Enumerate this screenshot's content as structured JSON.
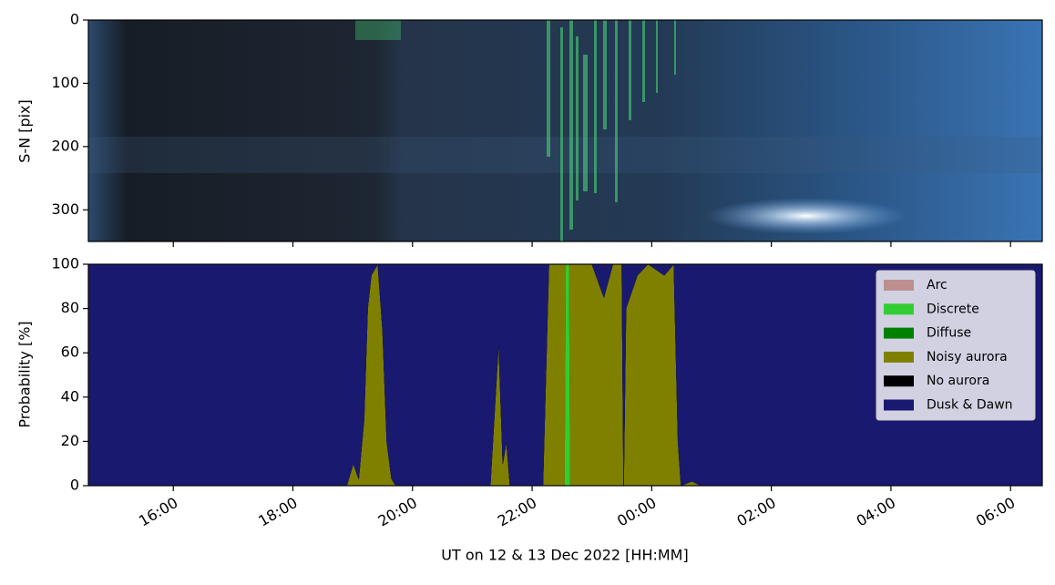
{
  "chart_data": [
    {
      "type": "image",
      "ylabel": "S-N [pix]",
      "ylim": [
        350,
        0
      ],
      "yticks": [
        0,
        100,
        200,
        300
      ]
    },
    {
      "type": "stackarea",
      "ylabel": "Probability [%]",
      "xlabel": "UT on 12 & 13 Dec 2022 [HH:MM]",
      "xlim": [
        14.58,
        30.53
      ],
      "xticks": [
        {
          "value": 16,
          "label": "16:00"
        },
        {
          "value": 18,
          "label": "18:00"
        },
        {
          "value": 20,
          "label": "20:00"
        },
        {
          "value": 22,
          "label": "22:00"
        },
        {
          "value": 24,
          "label": "00:00"
        },
        {
          "value": 26,
          "label": "02:00"
        },
        {
          "value": 28,
          "label": "04:00"
        },
        {
          "value": 30,
          "label": "06:00"
        }
      ],
      "ylim": [
        0,
        100
      ],
      "yticks": [
        0,
        20,
        40,
        60,
        80,
        100
      ],
      "legend": "upper right",
      "x": [
        14.58,
        18.9,
        19.01,
        19.1,
        19.19,
        19.25,
        19.31,
        19.42,
        19.5,
        19.57,
        19.65,
        19.72,
        21.3,
        21.44,
        21.51,
        21.57,
        21.63,
        22.18,
        22.24,
        22.28,
        22.54,
        22.56,
        22.62,
        22.64,
        23.0,
        23.2,
        23.35,
        23.5,
        23.53,
        23.57,
        23.76,
        23.94,
        24.21,
        24.37,
        24.44,
        24.49,
        24.67,
        24.82,
        30.53
      ],
      "series": [
        {
          "name": "Arc",
          "color": "#bc8f8f",
          "values": [
            0,
            0,
            0,
            0,
            0,
            0,
            0,
            0,
            0,
            0,
            0,
            0,
            0,
            0,
            0,
            0,
            0,
            0,
            0,
            0,
            0,
            0,
            0,
            0,
            0,
            0,
            0,
            0,
            0,
            0,
            0,
            0,
            0,
            0,
            0,
            0,
            0,
            0,
            0
          ]
        },
        {
          "name": "Discrete",
          "color": "#32cd32",
          "values": [
            0,
            0,
            0,
            0,
            0,
            0,
            0,
            0,
            0,
            0,
            0,
            0,
            0,
            0,
            0,
            0,
            0,
            0,
            0,
            0,
            0,
            100,
            100,
            0,
            0,
            0,
            0,
            0,
            0,
            0,
            0,
            0,
            0,
            0,
            0,
            0,
            0,
            0,
            0
          ]
        },
        {
          "name": "Diffuse",
          "color": "#008000",
          "values": [
            0,
            0,
            0,
            0,
            0,
            0,
            0,
            0,
            0,
            0,
            0,
            0,
            0,
            0,
            0,
            0,
            0,
            0,
            0,
            0,
            0,
            0,
            0,
            0,
            0,
            0,
            0,
            0,
            0,
            0,
            0,
            0,
            0,
            0,
            0,
            0,
            0,
            0,
            0
          ]
        },
        {
          "name": "Noisy aurora",
          "color": "#808000",
          "values": [
            0,
            0,
            10,
            3,
            30,
            80,
            95,
            100,
            70,
            20,
            3,
            0,
            0,
            65,
            10,
            20,
            0,
            0,
            60,
            100,
            100,
            0,
            0,
            100,
            100,
            85,
            100,
            100,
            0,
            80,
            95,
            100,
            95,
            100,
            20,
            0,
            2,
            0,
            0
          ]
        },
        {
          "name": "No aurora",
          "color": "#000000",
          "values": [
            0,
            0,
            0,
            0,
            0,
            0,
            0,
            0,
            0,
            0,
            0,
            0,
            0,
            0,
            0,
            0,
            0,
            0,
            0,
            0,
            0,
            0,
            0,
            0,
            0,
            0,
            0,
            0,
            0,
            0,
            0,
            0,
            0,
            0,
            0,
            0,
            0,
            0,
            0
          ]
        },
        {
          "name": "Dusk & Dawn",
          "color": "#191970",
          "values": [
            100,
            100,
            90,
            97,
            70,
            20,
            5,
            0,
            30,
            80,
            97,
            100,
            100,
            35,
            90,
            80,
            100,
            100,
            40,
            0,
            0,
            0,
            0,
            0,
            0,
            15,
            0,
            0,
            100,
            20,
            5,
            0,
            5,
            0,
            80,
            100,
            98,
            100,
            100
          ]
        }
      ]
    }
  ]
}
